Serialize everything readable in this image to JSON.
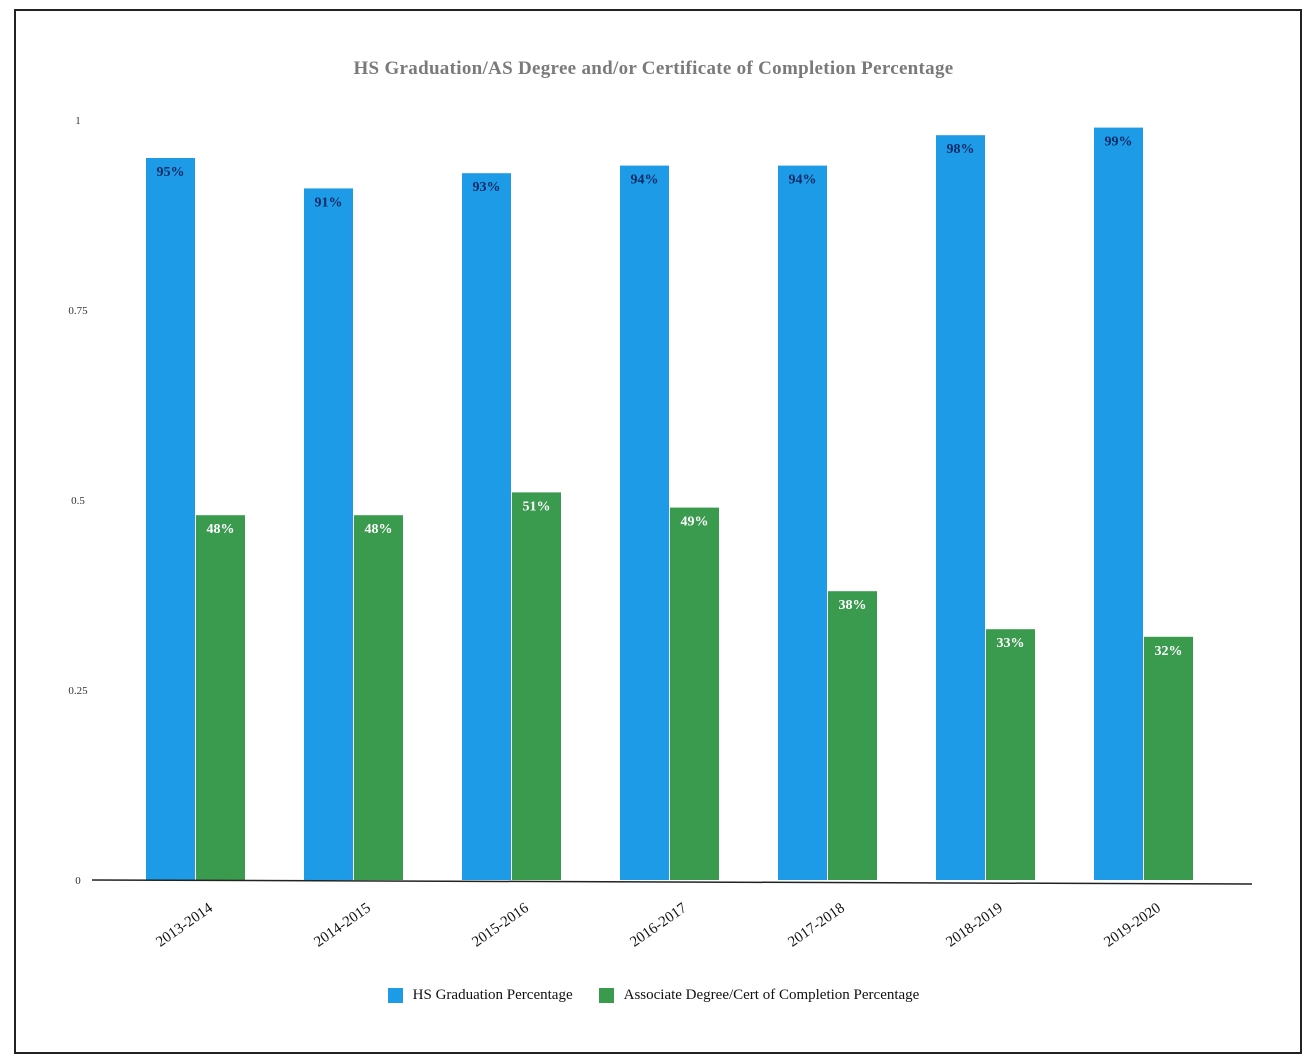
{
  "chart_data": {
    "type": "bar",
    "title": "HS Graduation/AS Degree and/or Certificate of Completion Percentage",
    "categories": [
      "2013-2014",
      "2014-2015",
      "2015-2016",
      "2016-2017",
      "2017-2018",
      "2018-2019",
      "2019-2020"
    ],
    "series": [
      {
        "name": "HS Graduation Percentage",
        "color": "#1e9be6",
        "values": [
          0.95,
          0.91,
          0.93,
          0.94,
          0.94,
          0.98,
          0.99
        ],
        "labels": [
          "95%",
          "91%",
          "93%",
          "94%",
          "94%",
          "98%",
          "99%"
        ]
      },
      {
        "name": "Associate Degree/Cert of Completion Percentage",
        "color": "#3a9a4e",
        "values": [
          0.48,
          0.48,
          0.51,
          0.49,
          0.38,
          0.33,
          0.32
        ],
        "labels": [
          "48%",
          "48%",
          "51%",
          "49%",
          "38%",
          "33%",
          "32%"
        ]
      }
    ],
    "yticks": [
      "0",
      "0.25",
      "0.5",
      "0.75",
      "1"
    ],
    "ylim": [
      0,
      1
    ],
    "grid": false,
    "legend_position": "bottom-center"
  }
}
